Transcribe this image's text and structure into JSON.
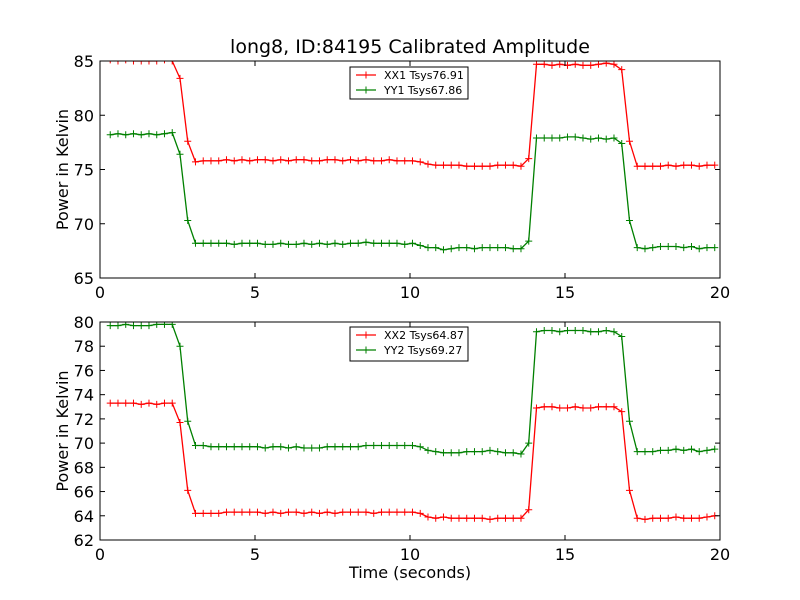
{
  "figure": {
    "title": "long8, ID:84195 Calibrated Amplitude"
  },
  "chart_data": [
    {
      "type": "line",
      "title": "long8, ID:84195 Calibrated Amplitude",
      "xlabel": "",
      "ylabel": "Power in Kelvin",
      "xlim": [
        0,
        20
      ],
      "ylim": [
        65,
        85
      ],
      "xticks": [
        0,
        5,
        10,
        15,
        20
      ],
      "yticks": [
        65,
        70,
        75,
        80,
        85
      ],
      "grid": false,
      "legend_position": "top-center",
      "x": [
        0.33,
        0.58,
        0.83,
        1.08,
        1.33,
        1.58,
        1.83,
        2.08,
        2.33,
        2.58,
        2.83,
        3.08,
        3.33,
        3.58,
        3.83,
        4.08,
        4.33,
        4.58,
        4.83,
        5.08,
        5.33,
        5.58,
        5.83,
        6.08,
        6.33,
        6.58,
        6.83,
        7.08,
        7.33,
        7.58,
        7.83,
        8.08,
        8.33,
        8.58,
        8.83,
        9.08,
        9.33,
        9.58,
        9.83,
        10.08,
        10.33,
        10.58,
        10.83,
        11.08,
        11.33,
        11.58,
        11.83,
        12.08,
        12.33,
        12.58,
        12.83,
        13.08,
        13.33,
        13.58,
        13.83,
        14.08,
        14.33,
        14.58,
        14.83,
        15.08,
        15.33,
        15.58,
        15.83,
        16.08,
        16.33,
        16.58,
        16.83,
        17.08,
        17.33,
        17.58,
        17.83,
        18.08,
        18.33,
        18.58,
        18.83,
        19.08,
        19.33,
        19.58,
        19.83
      ],
      "series": [
        {
          "name": "XX1 Tsys76.91",
          "color": "#ff0000",
          "values": [
            85.1,
            85.0,
            85.1,
            85.0,
            85.0,
            85.0,
            85.0,
            85.1,
            85.0,
            83.4,
            77.6,
            75.7,
            75.8,
            75.8,
            75.8,
            75.9,
            75.8,
            75.9,
            75.8,
            75.9,
            75.9,
            75.8,
            75.9,
            75.8,
            75.9,
            75.9,
            75.8,
            75.8,
            75.9,
            75.9,
            75.8,
            75.9,
            75.8,
            75.9,
            75.8,
            75.8,
            75.9,
            75.8,
            75.8,
            75.8,
            75.7,
            75.5,
            75.4,
            75.4,
            75.4,
            75.4,
            75.3,
            75.3,
            75.3,
            75.3,
            75.4,
            75.4,
            75.4,
            75.3,
            76.0,
            84.7,
            84.7,
            84.6,
            84.7,
            84.6,
            84.7,
            84.6,
            84.6,
            84.7,
            84.8,
            84.7,
            84.2,
            77.6,
            75.3,
            75.3,
            75.3,
            75.3,
            75.4,
            75.3,
            75.4,
            75.4,
            75.3,
            75.4,
            75.4
          ]
        },
        {
          "name": "YY1 Tsys67.86",
          "color": "#008000",
          "values": [
            78.2,
            78.3,
            78.2,
            78.3,
            78.2,
            78.3,
            78.2,
            78.3,
            78.4,
            76.4,
            70.3,
            68.2,
            68.2,
            68.2,
            68.2,
            68.2,
            68.1,
            68.2,
            68.2,
            68.2,
            68.1,
            68.1,
            68.2,
            68.1,
            68.1,
            68.2,
            68.1,
            68.2,
            68.1,
            68.2,
            68.1,
            68.2,
            68.2,
            68.3,
            68.2,
            68.2,
            68.2,
            68.2,
            68.1,
            68.2,
            68.0,
            67.8,
            67.8,
            67.6,
            67.7,
            67.8,
            67.8,
            67.7,
            67.8,
            67.8,
            67.8,
            67.8,
            67.7,
            67.7,
            68.4,
            77.9,
            77.9,
            77.9,
            77.9,
            78.0,
            78.0,
            77.9,
            77.8,
            77.9,
            77.8,
            77.9,
            77.4,
            70.3,
            67.8,
            67.7,
            67.8,
            67.9,
            67.9,
            67.9,
            67.8,
            67.9,
            67.7,
            67.8,
            67.8
          ]
        }
      ]
    },
    {
      "type": "line",
      "title": "",
      "xlabel": "Time (seconds)",
      "ylabel": "Power in Kelvin",
      "xlim": [
        0,
        20
      ],
      "ylim": [
        62,
        80
      ],
      "xticks": [
        0,
        5,
        10,
        15,
        20
      ],
      "yticks": [
        62,
        64,
        66,
        68,
        70,
        72,
        74,
        76,
        78,
        80
      ],
      "grid": false,
      "legend_position": "top-center",
      "x": [
        0.33,
        0.58,
        0.83,
        1.08,
        1.33,
        1.58,
        1.83,
        2.08,
        2.33,
        2.58,
        2.83,
        3.08,
        3.33,
        3.58,
        3.83,
        4.08,
        4.33,
        4.58,
        4.83,
        5.08,
        5.33,
        5.58,
        5.83,
        6.08,
        6.33,
        6.58,
        6.83,
        7.08,
        7.33,
        7.58,
        7.83,
        8.08,
        8.33,
        8.58,
        8.83,
        9.08,
        9.33,
        9.58,
        9.83,
        10.08,
        10.33,
        10.58,
        10.83,
        11.08,
        11.33,
        11.58,
        11.83,
        12.08,
        12.33,
        12.58,
        12.83,
        13.08,
        13.33,
        13.58,
        13.83,
        14.08,
        14.33,
        14.58,
        14.83,
        15.08,
        15.33,
        15.58,
        15.83,
        16.08,
        16.33,
        16.58,
        16.83,
        17.08,
        17.33,
        17.58,
        17.83,
        18.08,
        18.33,
        18.58,
        18.83,
        19.08,
        19.33,
        19.58,
        19.83
      ],
      "series": [
        {
          "name": "XX2 Tsys64.87",
          "color": "#ff0000",
          "values": [
            73.3,
            73.3,
            73.3,
            73.3,
            73.2,
            73.3,
            73.2,
            73.3,
            73.3,
            71.7,
            66.1,
            64.2,
            64.2,
            64.2,
            64.2,
            64.3,
            64.3,
            64.3,
            64.3,
            64.3,
            64.2,
            64.3,
            64.2,
            64.3,
            64.3,
            64.2,
            64.3,
            64.2,
            64.3,
            64.2,
            64.3,
            64.3,
            64.3,
            64.3,
            64.2,
            64.3,
            64.3,
            64.3,
            64.3,
            64.3,
            64.2,
            63.9,
            63.8,
            63.9,
            63.8,
            63.8,
            63.8,
            63.8,
            63.8,
            63.7,
            63.8,
            63.8,
            63.8,
            63.8,
            64.5,
            72.9,
            73.0,
            73.0,
            72.9,
            72.9,
            73.0,
            72.9,
            72.9,
            73.0,
            73.0,
            73.0,
            72.6,
            66.1,
            63.8,
            63.7,
            63.8,
            63.8,
            63.8,
            63.9,
            63.8,
            63.8,
            63.8,
            63.9,
            64.0
          ]
        },
        {
          "name": "YY2 Tsys69.27",
          "color": "#008000",
          "values": [
            79.7,
            79.7,
            79.8,
            79.7,
            79.7,
            79.7,
            79.8,
            79.8,
            79.8,
            78.0,
            71.8,
            69.8,
            69.8,
            69.7,
            69.7,
            69.7,
            69.7,
            69.7,
            69.7,
            69.7,
            69.6,
            69.7,
            69.7,
            69.6,
            69.7,
            69.6,
            69.6,
            69.6,
            69.7,
            69.7,
            69.7,
            69.7,
            69.7,
            69.8,
            69.8,
            69.8,
            69.8,
            69.8,
            69.8,
            69.8,
            69.7,
            69.4,
            69.3,
            69.2,
            69.2,
            69.2,
            69.3,
            69.3,
            69.3,
            69.4,
            69.3,
            69.2,
            69.2,
            69.1,
            70.0,
            79.2,
            79.3,
            79.3,
            79.2,
            79.3,
            79.3,
            79.3,
            79.2,
            79.2,
            79.3,
            79.2,
            78.8,
            71.8,
            69.3,
            69.3,
            69.3,
            69.4,
            69.4,
            69.5,
            69.4,
            69.5,
            69.3,
            69.4,
            69.5
          ]
        }
      ]
    }
  ]
}
